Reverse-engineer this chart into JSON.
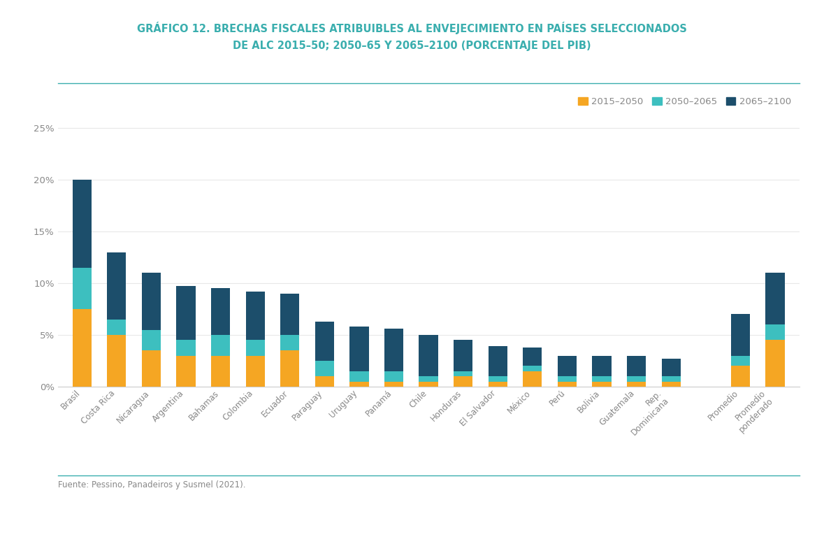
{
  "categories": [
    "Brasil",
    "Costa Rica",
    "Nicaragua",
    "Argentina",
    "Bahamas",
    "Colombia",
    "Ecuador",
    "Paraguay",
    "Uruguay",
    "Panamá",
    "Chile",
    "Honduras",
    "El Salvador",
    "México",
    "Perú",
    "Bolivia",
    "Guatemala",
    "Rep.\nDominicana",
    "Promedio",
    "Promedio\nponderado"
  ],
  "x_positions": [
    0,
    1,
    2,
    3,
    4,
    5,
    6,
    7,
    8,
    9,
    10,
    11,
    12,
    13,
    14,
    15,
    16,
    17,
    19,
    20
  ],
  "series_2015_2050": [
    7.5,
    5.0,
    3.5,
    3.0,
    3.0,
    3.0,
    3.5,
    1.0,
    0.5,
    0.5,
    0.5,
    1.0,
    0.5,
    1.5,
    0.5,
    0.5,
    0.5,
    0.5,
    2.0,
    4.5
  ],
  "series_2050_2065": [
    4.0,
    1.5,
    2.0,
    1.5,
    2.0,
    1.5,
    1.5,
    1.5,
    1.0,
    1.0,
    0.5,
    0.5,
    0.5,
    0.5,
    0.5,
    0.5,
    0.5,
    0.5,
    1.0,
    1.5
  ],
  "series_2065_2100": [
    8.5,
    6.5,
    5.5,
    5.2,
    4.5,
    4.7,
    4.0,
    3.8,
    4.3,
    4.1,
    4.0,
    3.0,
    2.9,
    1.8,
    2.0,
    2.0,
    2.0,
    1.7,
    4.0,
    5.0
  ],
  "color_2015_2050": "#F5A623",
  "color_2050_2065": "#3DBFBF",
  "color_2065_2100": "#1C4E6B",
  "title_line1": "GRÁFICO 12. BRECHAS FISCALES ATRIBUIBLES AL ENVEJECIMIENTO EN PAÍSES SELECCIONADOS",
  "title_line2": "DE ALC 2015–50; 2050–65 Y 2065–2100 (PORCENTAJE DEL PIB)",
  "legend_labels": [
    "2015–2050",
    "2050–2065",
    "2065–2100"
  ],
  "footer": "Fuente: Pessino, Panadeiros y Susmel (2021).",
  "yticks": [
    0,
    5,
    10,
    15,
    20,
    25
  ],
  "ylim": [
    0,
    27
  ],
  "background_color": "#FFFFFF",
  "title_color": "#3AAEAE",
  "separator_color": "#3AAEAE",
  "tick_color": "#888888",
  "bar_width": 0.55
}
